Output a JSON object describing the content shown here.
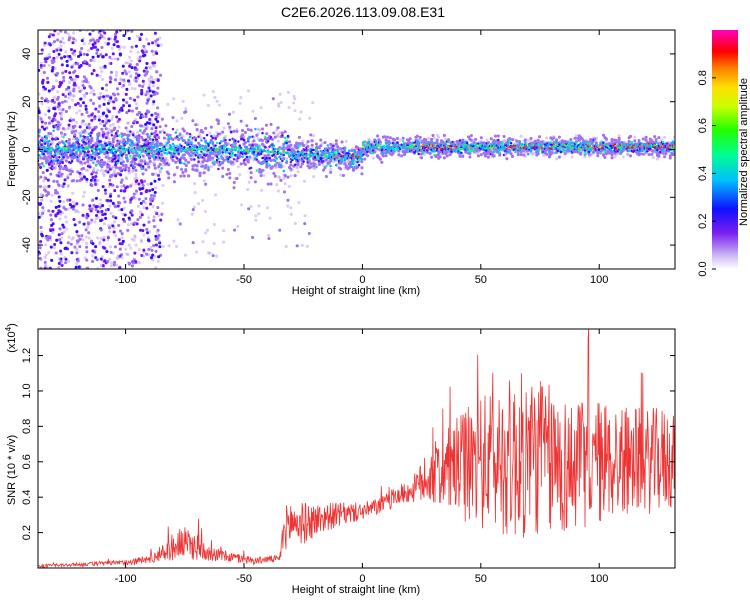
{
  "title": "C2E6.2026.113.09.08.E31",
  "chart_data": [
    {
      "type": "heatmap",
      "panel": "spectrogram",
      "xlabel": "Height of straight line (km)",
      "ylabel": "Frequency (Hz)",
      "xlim": [
        -137,
        132
      ],
      "ylim": [
        -50,
        50
      ],
      "xticks": [
        -100,
        -50,
        0,
        50,
        100
      ],
      "xtick_labels": [
        "-100",
        "-50",
        "0",
        "50",
        "100"
      ],
      "yticks": [
        -40,
        -20,
        0,
        20,
        40
      ],
      "ytick_labels": [
        "-40",
        "-20",
        "0",
        "20",
        "40"
      ],
      "colorbar": {
        "label": "Normalized spectral amplitude",
        "range": [
          0,
          1
        ],
        "ticks": [
          0.0,
          0.2,
          0.4,
          0.6,
          0.8
        ],
        "tick_labels": [
          "0.0",
          "0.2",
          "0.4",
          "0.6",
          "0.8"
        ]
      },
      "features": {
        "scatter_band_x": [
          -137,
          -85
        ],
        "central_ridge_freq_hz": 0,
        "peak_segments_km": [
          [
            -10,
            0
          ],
          [
            25,
            40
          ],
          [
            60,
            80
          ],
          [
            95,
            132
          ]
        ]
      }
    },
    {
      "type": "line",
      "panel": "snr",
      "xlabel": "Height of straight line (km)",
      "ylabel": "SNR (10 * v/v)",
      "yscale_label": "(x10",
      "yscale_exp": "4",
      "xlim": [
        -137,
        132
      ],
      "ylim": [
        0,
        1.35
      ],
      "xticks": [
        -100,
        -50,
        0,
        50,
        100
      ],
      "xtick_labels": [
        "-100",
        "-50",
        "0",
        "50",
        "100"
      ],
      "yticks": [
        0.2,
        0.4,
        0.6,
        0.8,
        1.0,
        1.2
      ],
      "ytick_labels": [
        "0.2",
        "0.4",
        "0.6",
        "0.8",
        "1.0",
        "1.2"
      ],
      "series": [
        {
          "name": "SNR",
          "color": "#ee3333",
          "x": [
            -137,
            -120,
            -100,
            -90,
            -85,
            -80,
            -75,
            -70,
            -65,
            -60,
            -55,
            -50,
            -45,
            -40,
            -35,
            -33,
            -30,
            -25,
            -20,
            -15,
            -10,
            -5,
            0,
            5,
            10,
            15,
            20,
            25,
            30,
            35,
            40,
            45,
            50,
            55,
            60,
            65,
            70,
            75,
            80,
            85,
            90,
            95,
            100,
            105,
            110,
            115,
            120,
            125,
            132
          ],
          "mean": [
            0.01,
            0.02,
            0.03,
            0.05,
            0.08,
            0.12,
            0.14,
            0.12,
            0.09,
            0.07,
            0.06,
            0.05,
            0.04,
            0.05,
            0.05,
            0.22,
            0.26,
            0.25,
            0.27,
            0.29,
            0.3,
            0.31,
            0.32,
            0.34,
            0.37,
            0.41,
            0.43,
            0.48,
            0.53,
            0.55,
            0.57,
            0.58,
            0.6,
            0.6,
            0.62,
            0.62,
            0.63,
            0.64,
            0.6,
            0.58,
            0.57,
            0.59,
            0.6,
            0.6,
            0.61,
            0.61,
            0.6,
            0.61,
            0.62
          ],
          "amp": [
            0.01,
            0.01,
            0.015,
            0.025,
            0.04,
            0.08,
            0.09,
            0.08,
            0.05,
            0.035,
            0.03,
            0.025,
            0.02,
            0.02,
            0.02,
            0.12,
            0.14,
            0.12,
            0.1,
            0.08,
            0.07,
            0.06,
            0.05,
            0.05,
            0.05,
            0.06,
            0.06,
            0.12,
            0.18,
            0.22,
            0.28,
            0.34,
            0.38,
            0.4,
            0.44,
            0.48,
            0.48,
            0.46,
            0.42,
            0.4,
            0.38,
            0.36,
            0.36,
            0.34,
            0.32,
            0.3,
            0.3,
            0.3,
            0.3
          ]
        }
      ]
    }
  ]
}
